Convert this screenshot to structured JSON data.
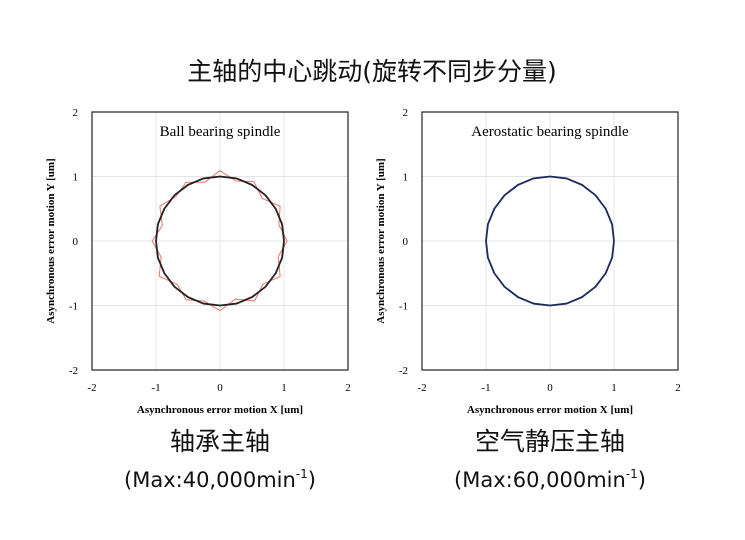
{
  "title": "主轴的中心跳动(旋转不同步分量)",
  "chart_data": [
    {
      "type": "line",
      "title": "Ball bearing spindle",
      "xlabel": "Asynchronous error motion X [um]",
      "ylabel": "Asynchronous error motion Y [um]",
      "xlim": [
        -2,
        2
      ],
      "ylim": [
        -2,
        2
      ],
      "xticks": [
        -2,
        -1,
        0,
        1,
        2
      ],
      "yticks": [
        -2,
        -1,
        0,
        1,
        2
      ],
      "caption": "轴承主轴",
      "note": [
        "(Max:40,000min",
        "-1",
        ")"
      ],
      "series": [
        {
          "color": "#e8756a",
          "x": [
            1.05,
            0.92,
            0.94,
            0.66,
            0.53,
            0.25,
            0,
            -0.24,
            -0.53,
            -0.69,
            -0.94,
            -0.9,
            -1.06,
            -0.92,
            -0.95,
            -0.67,
            -0.53,
            -0.25,
            0,
            0.24,
            0.54,
            0.67,
            0.94,
            0.91,
            1.05
          ],
          "values": [
            0,
            0.25,
            0.54,
            0.66,
            0.92,
            0.93,
            1.09,
            0.91,
            0.91,
            0.69,
            0.54,
            0.24,
            0,
            -0.25,
            -0.55,
            -0.67,
            -0.91,
            -0.93,
            -1.08,
            -0.9,
            -0.93,
            -0.67,
            -0.55,
            -0.24,
            0
          ]
        },
        {
          "color": "#222222",
          "x": [
            1,
            0.97,
            0.87,
            0.71,
            0.5,
            0.26,
            0,
            -0.26,
            -0.5,
            -0.71,
            -0.87,
            -0.97,
            -1,
            -0.97,
            -0.87,
            -0.71,
            -0.5,
            -0.26,
            0,
            0.26,
            0.5,
            0.71,
            0.87,
            0.97,
            1
          ],
          "values": [
            0,
            0.26,
            0.5,
            0.71,
            0.87,
            0.97,
            1,
            0.97,
            0.87,
            0.71,
            0.5,
            0.26,
            0,
            -0.26,
            -0.5,
            -0.71,
            -0.87,
            -0.97,
            -1,
            -0.97,
            -0.87,
            -0.71,
            -0.5,
            -0.26,
            0
          ]
        }
      ]
    },
    {
      "type": "line",
      "title": "Aerostatic bearing spindle",
      "xlabel": "Asynchronous error motion X [um]",
      "ylabel": "Asynchronous error motion Y [um]",
      "xlim": [
        -2,
        2
      ],
      "ylim": [
        -2,
        2
      ],
      "xticks": [
        -2,
        -1,
        0,
        1,
        2
      ],
      "yticks": [
        -2,
        -1,
        0,
        1,
        2
      ],
      "caption": "空气静压主轴",
      "note": [
        "(Max:60,000min",
        "-1",
        ")"
      ],
      "series": [
        {
          "color": "#1f2a5c",
          "x": [
            1,
            0.97,
            0.87,
            0.71,
            0.5,
            0.26,
            0,
            -0.26,
            -0.5,
            -0.71,
            -0.87,
            -0.97,
            -1,
            -0.97,
            -0.87,
            -0.71,
            -0.5,
            -0.26,
            0,
            0.26,
            0.5,
            0.71,
            0.87,
            0.97,
            1
          ],
          "values": [
            0,
            0.26,
            0.5,
            0.71,
            0.87,
            0.97,
            1,
            0.97,
            0.87,
            0.71,
            0.5,
            0.26,
            0,
            -0.26,
            -0.5,
            -0.71,
            -0.87,
            -0.97,
            -1,
            -0.97,
            -0.87,
            -0.71,
            -0.5,
            -0.26,
            0
          ]
        }
      ]
    }
  ]
}
